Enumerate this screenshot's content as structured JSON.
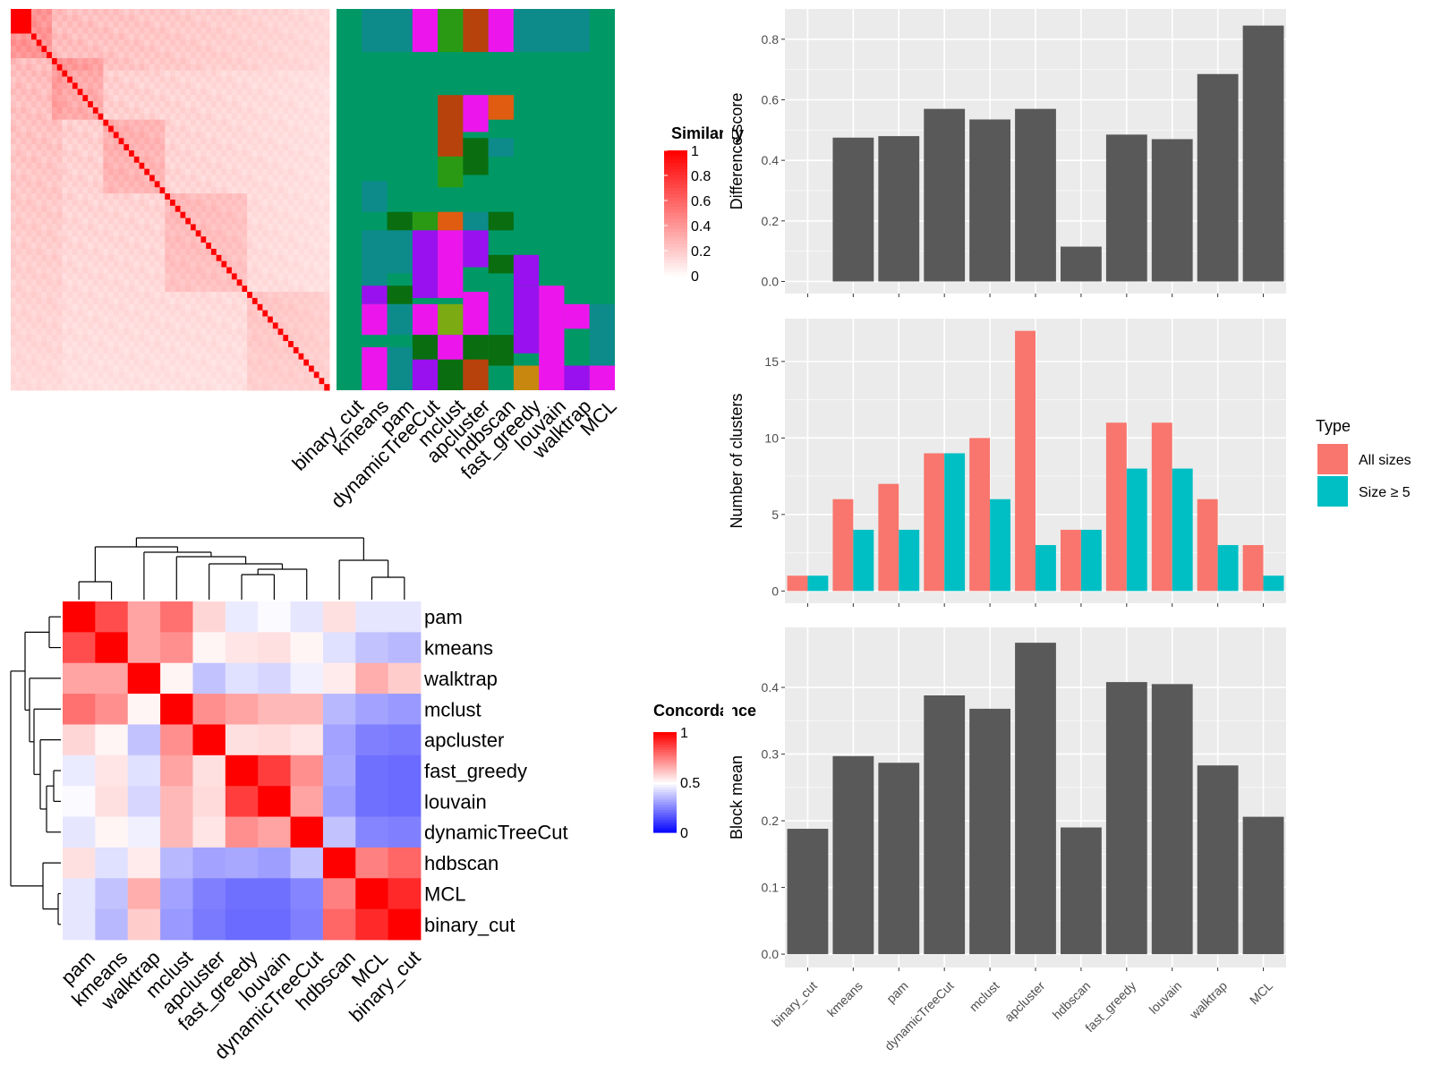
{
  "colors": {
    "panel_bg": "#ebebeb",
    "grid": "#ffffff",
    "bar": "#595959",
    "all_sizes": "#f8766d",
    "size_ge_5": "#00bfc4",
    "similarity_high": "#ff0000",
    "concordance_high": "#ff0000",
    "concordance_mid": "#ffffff",
    "concordance_low": "#0000ff",
    "cluster_bg": "#009966"
  },
  "methods": [
    "binary_cut",
    "kmeans",
    "pam",
    "dynamicTreeCut",
    "mclust",
    "apcluster",
    "hdbscan",
    "fast_greedy",
    "louvain",
    "walktrap",
    "MCL"
  ],
  "similarity_panel": {
    "legend_title": "Similarity",
    "legend_ticks": [
      "1",
      "0.8",
      "0.6",
      "0.4",
      "0.2",
      "0"
    ],
    "column_labels": [
      "binary_cut",
      "kmeans",
      "pam",
      "dynamicTreeCut",
      "mclust",
      "apcluster",
      "hdbscan",
      "fast_greedy",
      "louvain",
      "walktrap",
      "MCL"
    ],
    "block_sizes": [
      2,
      1,
      2,
      1,
      1,
      2,
      1,
      1,
      1,
      2,
      1,
      1,
      1,
      2,
      1,
      1,
      1,
      1,
      1,
      2,
      1,
      1,
      1,
      1,
      1,
      1,
      1,
      1,
      1,
      1,
      1,
      1,
      1,
      1,
      1,
      1,
      1,
      1,
      1,
      1,
      1,
      1,
      1,
      1,
      1,
      1,
      1,
      1,
      1,
      1,
      1,
      1,
      1,
      1,
      1,
      1,
      1,
      1,
      1,
      1,
      1,
      1
    ]
  },
  "concordance_panel": {
    "legend_title": "Concordance",
    "legend_ticks": [
      "1",
      "0.5",
      "0"
    ],
    "order": [
      "pam",
      "kmeans",
      "walktrap",
      "mclust",
      "apcluster",
      "fast_greedy",
      "louvain",
      "dynamicTreeCut",
      "hdbscan",
      "MCL",
      "binary_cut"
    ],
    "matrix": [
      [
        1.0,
        0.85,
        0.68,
        0.78,
        0.58,
        0.46,
        0.49,
        0.45,
        0.56,
        0.45,
        0.45
      ],
      [
        0.85,
        1.0,
        0.68,
        0.72,
        0.52,
        0.55,
        0.56,
        0.52,
        0.44,
        0.38,
        0.36
      ],
      [
        0.68,
        0.68,
        1.0,
        0.52,
        0.38,
        0.44,
        0.42,
        0.47,
        0.54,
        0.66,
        0.6
      ],
      [
        0.78,
        0.72,
        0.52,
        1.0,
        0.72,
        0.68,
        0.64,
        0.64,
        0.36,
        0.32,
        0.3
      ],
      [
        0.58,
        0.52,
        0.38,
        0.72,
        1.0,
        0.56,
        0.57,
        0.55,
        0.32,
        0.25,
        0.24
      ],
      [
        0.46,
        0.55,
        0.44,
        0.68,
        0.56,
        1.0,
        0.88,
        0.72,
        0.33,
        0.22,
        0.21
      ],
      [
        0.49,
        0.56,
        0.42,
        0.64,
        0.57,
        0.88,
        1.0,
        0.68,
        0.31,
        0.22,
        0.21
      ],
      [
        0.45,
        0.52,
        0.47,
        0.64,
        0.55,
        0.72,
        0.68,
        1.0,
        0.38,
        0.26,
        0.25
      ],
      [
        0.56,
        0.44,
        0.54,
        0.36,
        0.32,
        0.33,
        0.31,
        0.38,
        1.0,
        0.75,
        0.8
      ],
      [
        0.45,
        0.38,
        0.66,
        0.32,
        0.25,
        0.22,
        0.22,
        0.26,
        0.75,
        1.0,
        0.92
      ],
      [
        0.45,
        0.36,
        0.6,
        0.3,
        0.24,
        0.21,
        0.21,
        0.25,
        0.8,
        0.92,
        1.0
      ]
    ]
  },
  "chart_data": [
    {
      "type": "bar",
      "categories": [
        "binary_cut",
        "kmeans",
        "pam",
        "dynamicTreeCut",
        "mclust",
        "apcluster",
        "hdbscan",
        "fast_greedy",
        "louvain",
        "walktrap",
        "MCL"
      ],
      "values": [
        0.0,
        0.475,
        0.48,
        0.57,
        0.535,
        0.57,
        0.115,
        0.485,
        0.47,
        0.685,
        0.845
      ],
      "xlabel": "",
      "ylabel": "Difference score",
      "ylim": [
        -0.04,
        0.9
      ],
      "yticks": [
        0.0,
        0.2,
        0.4,
        0.6,
        0.8
      ],
      "ytick_labels": [
        "0.0",
        "0.2",
        "0.4",
        "0.6",
        "0.8"
      ],
      "grid": true
    },
    {
      "type": "bar",
      "categories": [
        "binary_cut",
        "kmeans",
        "pam",
        "dynamicTreeCut",
        "mclust",
        "apcluster",
        "hdbscan",
        "fast_greedy",
        "louvain",
        "walktrap",
        "MCL"
      ],
      "series": [
        {
          "name": "All sizes",
          "values": [
            1,
            6,
            7,
            9,
            10,
            17,
            4,
            11,
            11,
            6,
            3
          ]
        },
        {
          "name": "Size ≥ 5",
          "values": [
            1,
            4,
            4,
            9,
            6,
            3,
            4,
            8,
            8,
            3,
            1
          ]
        }
      ],
      "xlabel": "",
      "ylabel": "Number of clusters",
      "ylim": [
        -0.8,
        17.8
      ],
      "yticks": [
        0,
        5,
        10,
        15
      ],
      "ytick_labels": [
        "0",
        "5",
        "10",
        "15"
      ],
      "legend_title": "Type",
      "legend_position": "right",
      "grid": true
    },
    {
      "type": "bar",
      "categories": [
        "binary_cut",
        "kmeans",
        "pam",
        "dynamicTreeCut",
        "mclust",
        "apcluster",
        "hdbscan",
        "fast_greedy",
        "louvain",
        "walktrap",
        "MCL"
      ],
      "values": [
        0.188,
        0.297,
        0.287,
        0.388,
        0.368,
        0.467,
        0.19,
        0.408,
        0.405,
        0.283,
        0.206
      ],
      "xlabel": "",
      "ylabel": "Block mean",
      "ylim": [
        -0.02,
        0.49
      ],
      "yticks": [
        0.0,
        0.1,
        0.2,
        0.3,
        0.4
      ],
      "ytick_labels": [
        "0.0",
        "0.1",
        "0.2",
        "0.3",
        "0.4"
      ],
      "grid": true
    }
  ]
}
